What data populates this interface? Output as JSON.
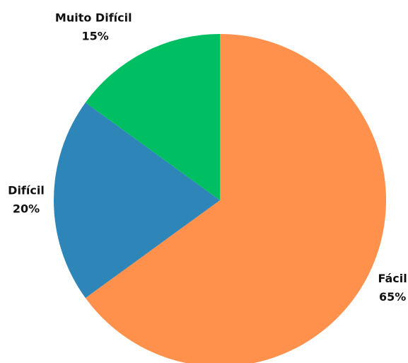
{
  "chart_data": {
    "type": "pie",
    "categories": [
      "Fácil",
      "Difícil",
      "Muito Difícil"
    ],
    "values": [
      65,
      20,
      15
    ],
    "value_labels": [
      "65%",
      "20%",
      "15%"
    ],
    "colors": [
      "#ff914d",
      "#2e86b8",
      "#00bf63"
    ]
  }
}
